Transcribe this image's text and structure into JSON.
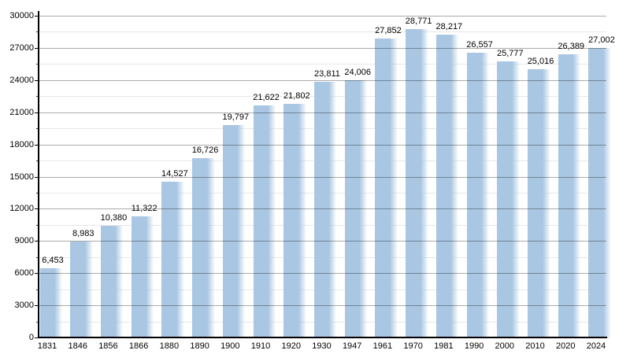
{
  "chart_data": {
    "type": "bar",
    "title": "",
    "xlabel": "",
    "ylabel": "",
    "categories": [
      "1831",
      "1846",
      "1856",
      "1866",
      "1880",
      "1890",
      "1900",
      "1910",
      "1920",
      "1930",
      "1947",
      "1961",
      "1970",
      "1981",
      "1990",
      "2000",
      "2010",
      "2020",
      "2024"
    ],
    "values": [
      6453,
      8983,
      10380,
      11322,
      14527,
      16726,
      19797,
      21622,
      21802,
      23811,
      24006,
      27852,
      28771,
      28217,
      26557,
      25777,
      25016,
      26389,
      27002
    ],
    "value_labels": [
      "6,453",
      "8,983",
      "10,380",
      "11,322",
      "14,527",
      "16,726",
      "19,797",
      "21,622",
      "21,802",
      "23,811",
      "24,006",
      "27,852",
      "28,771",
      "28,217",
      "26,557",
      "25,777",
      "25,016",
      "26,389",
      "27,002"
    ],
    "ylim": [
      0,
      30000
    ],
    "y_major_step": 3000,
    "y_minor_step": 1500,
    "y_tick_labels": [
      "0",
      "3000",
      "6000",
      "9000",
      "12000",
      "15000",
      "18000",
      "21000",
      "24000",
      "27000",
      "30000"
    ],
    "grid": "horizontal",
    "legend": "none",
    "colors": {
      "bar_fill": "#a9c6e2",
      "major_grid": "#ababab",
      "major_grid_rgba": "rgba(0,0,0,0.33)",
      "minor_grid": "#e7e7e7",
      "axis": "#000000",
      "text": "#000000",
      "background": "#ffffff"
    }
  }
}
